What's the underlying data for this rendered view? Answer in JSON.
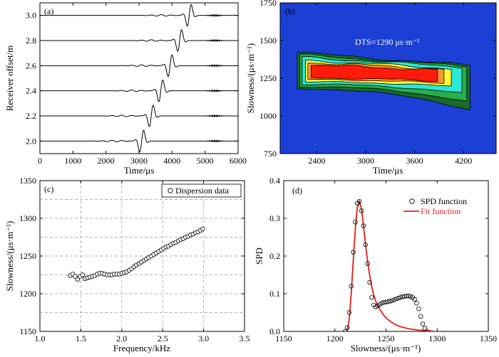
{
  "chart_data": [
    {
      "panel": "(a)",
      "type": "line",
      "title": "",
      "xlabel": "Time/μs",
      "ylabel": "Receiver offset/m",
      "xlim": [
        0,
        6000
      ],
      "ylim": [
        1.9,
        3.1
      ],
      "xticks": [
        0,
        1000,
        2000,
        3000,
        4000,
        5000,
        6000
      ],
      "yticks": [
        2.0,
        2.2,
        2.4,
        2.6,
        2.8,
        3.0
      ],
      "xtick_labels": [
        "0",
        "1000",
        "2000",
        "3000",
        "4000",
        "5000",
        "6000"
      ],
      "ytick_labels": [
        "2.0",
        "2.2",
        "2.4",
        "2.6",
        "2.8",
        "3.0"
      ],
      "series": [
        {
          "name": "2.0",
          "offset": 2.0,
          "arrival_us": 3080
        },
        {
          "name": "2.2",
          "offset": 2.2,
          "arrival_us": 3370
        },
        {
          "name": "2.4",
          "offset": 2.4,
          "arrival_us": 3660
        },
        {
          "name": "2.6",
          "offset": 2.6,
          "arrival_us": 3940
        },
        {
          "name": "2.8",
          "offset": 2.8,
          "arrival_us": 4230
        },
        {
          "name": "3.0",
          "offset": 3.0,
          "arrival_us": 4520
        }
      ]
    },
    {
      "panel": "(b)",
      "type": "heatmap",
      "title": "",
      "annotation": "DTS=1290 μs·m⁻¹",
      "xlabel": "Time/μs",
      "ylabel": "Slowness/(μs·m⁻¹)",
      "xlim": [
        1950,
        4600
      ],
      "ylim": [
        750,
        1750
      ],
      "xticks": [
        2400,
        3000,
        3600,
        4200
      ],
      "yticks": [
        750,
        1000,
        1250,
        1500,
        1750
      ],
      "xtick_labels": [
        "2400",
        "3000",
        "3600",
        "4200"
      ],
      "ytick_labels": [
        "750",
        "1000",
        "1250",
        "1500",
        "1750"
      ],
      "contour_levels": [
        {
          "color": "#1a6b2a",
          "x": [
            2160,
            4280
          ],
          "y_top": [
            1420,
            1335
          ],
          "y_bottom": [
            1180,
            1040
          ]
        },
        {
          "color": "#24b04a",
          "x": [
            2190,
            4240
          ],
          "y_top": [
            1405,
            1330
          ],
          "y_bottom": [
            1195,
            1095
          ]
        },
        {
          "color": "#2ee6d8",
          "x": [
            2220,
            4180
          ],
          "y_top": [
            1390,
            1325
          ],
          "y_bottom": [
            1210,
            1150
          ]
        },
        {
          "color": "#ffff33",
          "x": [
            2260,
            4050
          ],
          "y_top": [
            1370,
            1315
          ],
          "y_bottom": [
            1225,
            1195
          ]
        },
        {
          "color": "#ff9b2e",
          "x": [
            2290,
            3960
          ],
          "y_top": [
            1355,
            1310
          ],
          "y_bottom": [
            1240,
            1215
          ]
        },
        {
          "color": "#ff1a0a",
          "x": [
            2330,
            3880
          ],
          "y_top": [
            1340,
            1305
          ],
          "y_bottom": [
            1250,
            1230
          ]
        }
      ],
      "background_color": "#1c3fd6"
    },
    {
      "panel": "(c)",
      "type": "scatter",
      "title": "",
      "xlabel": "Frequency/kHz",
      "ylabel": "Slowness/(μs·m⁻¹)",
      "xlim": [
        1.0,
        3.5
      ],
      "ylim": [
        1150,
        1350
      ],
      "xticks": [
        1.0,
        1.5,
        2.0,
        2.5,
        3.0,
        3.5
      ],
      "yticks": [
        1150,
        1200,
        1250,
        1300,
        1350
      ],
      "xtick_labels": [
        "1.0",
        "1.5",
        "2.0",
        "2.5",
        "3.0",
        "3.5"
      ],
      "ytick_labels": [
        "1150",
        "1200",
        "1250",
        "1300",
        "1350"
      ],
      "grid": true,
      "legend": "Dispersion data",
      "series": [
        {
          "name": "Dispersion data",
          "x": [
            1.37,
            1.4,
            1.43,
            1.46,
            1.49,
            1.52,
            1.55,
            1.58,
            1.61,
            1.64,
            1.67,
            1.7,
            1.73,
            1.76,
            1.79,
            1.82,
            1.85,
            1.88,
            1.91,
            1.94,
            1.97,
            2.0,
            2.03,
            2.06,
            2.09,
            2.12,
            2.15,
            2.18,
            2.21,
            2.24,
            2.27,
            2.3,
            2.33,
            2.36,
            2.39,
            2.42,
            2.45,
            2.48,
            2.51,
            2.54,
            2.57,
            2.6,
            2.63,
            2.66,
            2.69,
            2.72,
            2.75,
            2.78,
            2.81,
            2.84,
            2.87,
            2.9,
            2.93,
            2.96,
            2.99
          ],
          "y": [
            1224,
            1226,
            1223,
            1219,
            1223,
            1225,
            1220,
            1221,
            1222,
            1223,
            1224,
            1226,
            1227,
            1227,
            1226,
            1225,
            1225,
            1225,
            1226,
            1226,
            1226,
            1227,
            1228,
            1229,
            1231,
            1233,
            1236,
            1238,
            1240,
            1242,
            1244,
            1246,
            1248,
            1250,
            1252,
            1254,
            1256,
            1258,
            1260,
            1262,
            1263,
            1265,
            1267,
            1268,
            1270,
            1272,
            1273,
            1275,
            1276,
            1278,
            1279,
            1281,
            1282,
            1284,
            1286
          ]
        }
      ]
    },
    {
      "panel": "(d)",
      "type": "line",
      "title": "",
      "xlabel": "Slowness/(μs·m⁻¹)",
      "ylabel": "SPD",
      "xlim": [
        1150,
        1350
      ],
      "ylim": [
        0.0,
        0.4
      ],
      "xticks": [
        1150,
        1200,
        1250,
        1300,
        1350
      ],
      "yticks": [
        0.0,
        0.1,
        0.2,
        0.3,
        0.4
      ],
      "xtick_labels": [
        "1150",
        "1200",
        "1250",
        "1300",
        "1350"
      ],
      "ytick_labels": [
        "0.0",
        "0.1",
        "0.2",
        "0.3",
        "0.4"
      ],
      "legend": [
        "SPD function",
        "Fit  function"
      ],
      "series": [
        {
          "name": "SPD function",
          "style": "markers",
          "x": [
            1210,
            1212,
            1214,
            1216,
            1218,
            1220,
            1222,
            1224,
            1226,
            1228,
            1230,
            1232,
            1234,
            1236,
            1238,
            1240,
            1242,
            1244,
            1246,
            1248,
            1250,
            1252,
            1254,
            1256,
            1258,
            1260,
            1262,
            1264,
            1266,
            1268,
            1270,
            1272,
            1274,
            1276,
            1278,
            1280,
            1282,
            1284,
            1286,
            1288,
            1290
          ],
          "y": [
            0.0,
            0.01,
            0.05,
            0.12,
            0.21,
            0.29,
            0.34,
            0.345,
            0.32,
            0.28,
            0.23,
            0.18,
            0.13,
            0.09,
            0.07,
            0.065,
            0.068,
            0.072,
            0.075,
            0.077,
            0.078,
            0.079,
            0.08,
            0.082,
            0.084,
            0.086,
            0.088,
            0.09,
            0.092,
            0.093,
            0.094,
            0.094,
            0.093,
            0.09,
            0.085,
            0.075,
            0.06,
            0.04,
            0.02,
            0.008,
            0.0
          ]
        },
        {
          "name": "Fit  function",
          "style": "line",
          "color": "#e0201a",
          "x": [
            1212,
            1214,
            1216,
            1218,
            1220,
            1222,
            1224,
            1226,
            1228,
            1230,
            1232,
            1234,
            1236,
            1238,
            1240,
            1244,
            1248,
            1252,
            1256,
            1260,
            1266,
            1272,
            1280,
            1288,
            1296
          ],
          "y": [
            0.0,
            0.03,
            0.1,
            0.19,
            0.27,
            0.33,
            0.345,
            0.325,
            0.28,
            0.23,
            0.185,
            0.15,
            0.12,
            0.097,
            0.08,
            0.058,
            0.042,
            0.031,
            0.023,
            0.017,
            0.011,
            0.007,
            0.004,
            0.002,
            0.001
          ]
        }
      ]
    }
  ]
}
